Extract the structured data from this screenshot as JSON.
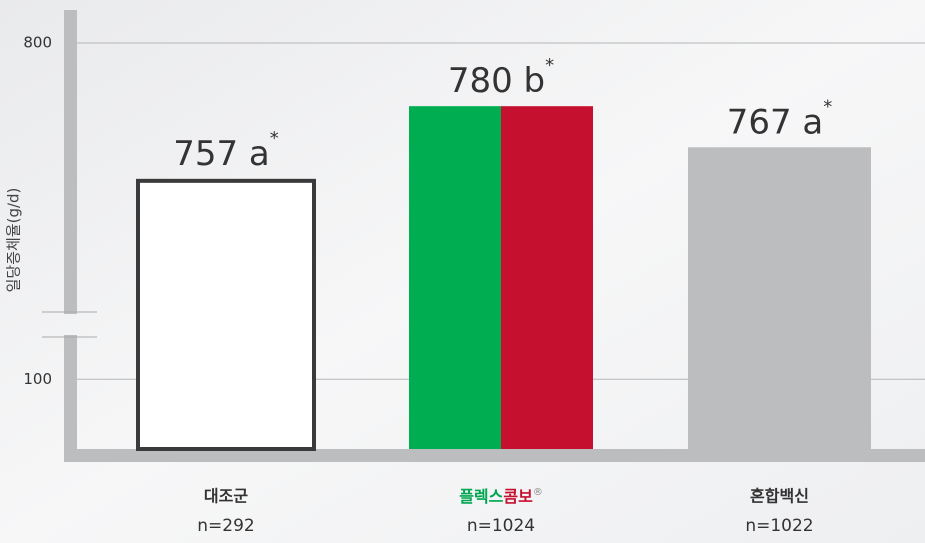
{
  "chart_data": {
    "type": "bar",
    "y_label": "일당증체율(g/d)",
    "categories": [
      "대조군",
      {
        "parts": [
          "플렉스",
          "콤보",
          "®"
        ],
        "colors": [
          "#00a651",
          "#c5112f",
          "#888888"
        ]
      },
      "혼합백신"
    ],
    "sample_sizes": [
      "n=292",
      "n=1024",
      "n=1022"
    ],
    "values": [
      757,
      780,
      767
    ],
    "value_labels": [
      "757 a",
      "780 b",
      "767 a"
    ],
    "value_label_marks": [
      "*",
      "*",
      "*"
    ],
    "bar_colors": [
      "#ffffff",
      [
        "#00ad50",
        "#c5112f"
      ],
      "#bcbdbf"
    ],
    "outline_color": "#3a3a3a",
    "ylim": [
      0,
      800
    ],
    "axis_break": [
      140,
      712
    ],
    "yticks": [
      100,
      800
    ],
    "grid": true
  }
}
